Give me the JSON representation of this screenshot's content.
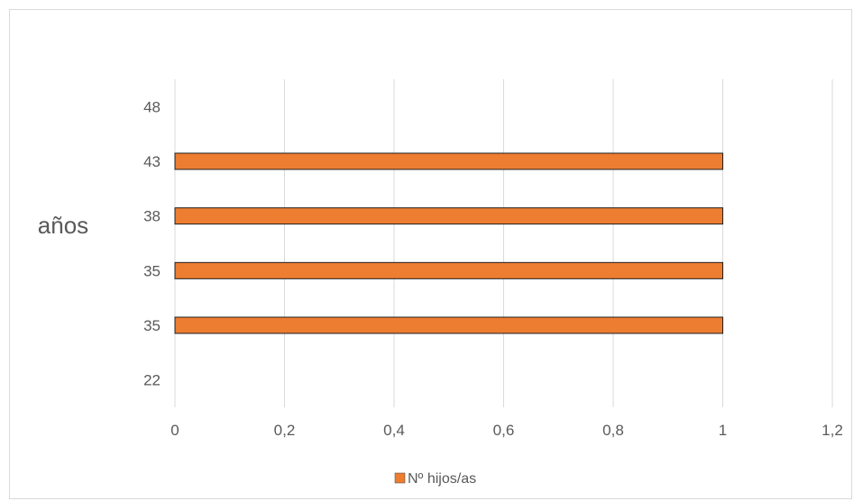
{
  "chart_data": {
    "type": "bar",
    "orientation": "horizontal",
    "categories": [
      "22",
      "35",
      "35",
      "38",
      "43",
      "48"
    ],
    "series": [
      {
        "name": "Nº hijos/as",
        "values": [
          null,
          1,
          1,
          1,
          1,
          null
        ],
        "color": "#ED7D31"
      }
    ],
    "ylabel": "años",
    "xlabel": "",
    "xlim": [
      0,
      1.2
    ],
    "x_ticks": [
      "0",
      "0,2",
      "0,4",
      "0,6",
      "0,8",
      "1",
      "1,2"
    ],
    "grid": "vertical",
    "legend_position": "bottom"
  }
}
